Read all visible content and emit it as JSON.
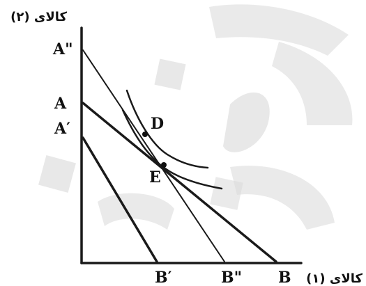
{
  "diagram": {
    "y_axis_label": "کالای (۲)",
    "x_axis_label": "کالای (۱)",
    "y_labels": {
      "a_double_prime": "A\"",
      "a": "A",
      "a_prime": "A′"
    },
    "x_labels": {
      "b_prime": "B′",
      "b_double_prime": "B\"",
      "b": "B"
    },
    "points": {
      "d": "D",
      "e": "E"
    },
    "watermark_color": "#d9d9d9"
  }
}
